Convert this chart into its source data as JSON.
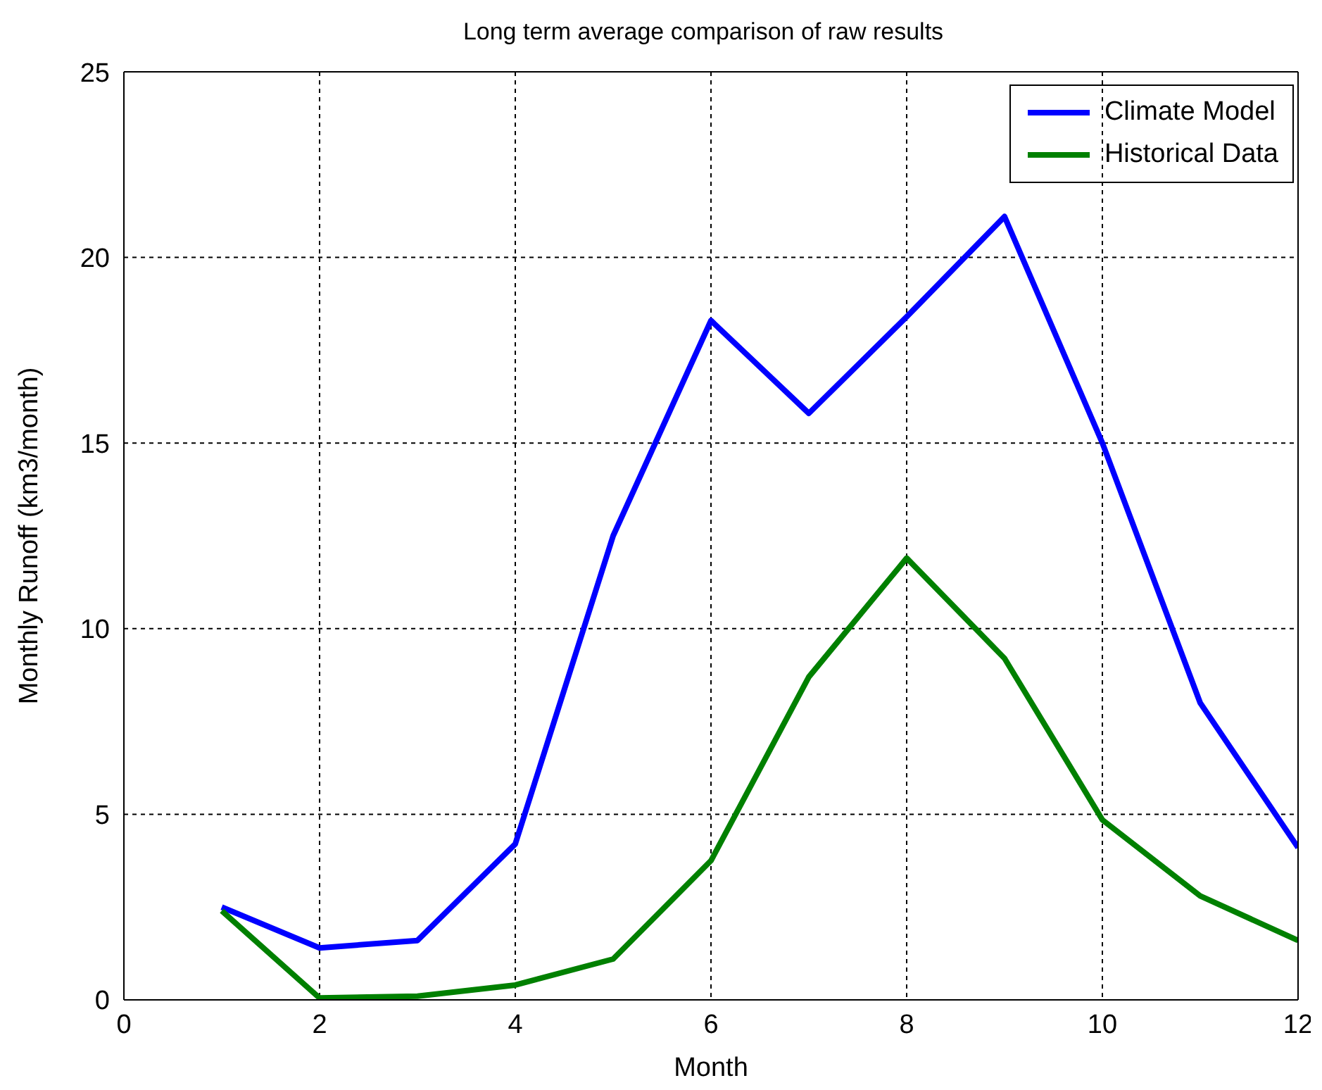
{
  "chart_data": {
    "type": "line",
    "title": "Long term average comparison of raw results",
    "xlabel": "Month",
    "ylabel": "Monthly Runoff (km3/month)",
    "x": [
      1,
      2,
      3,
      4,
      5,
      6,
      7,
      8,
      9,
      10,
      11,
      12
    ],
    "series": [
      {
        "name": "Climate Model",
        "color": "#0000ff",
        "values": [
          2.5,
          1.4,
          1.6,
          4.2,
          12.5,
          18.3,
          15.8,
          18.4,
          21.1,
          15.0,
          8.0,
          4.1
        ]
      },
      {
        "name": "Historical Data",
        "color": "#008000",
        "values": [
          2.4,
          0.05,
          0.1,
          0.4,
          1.1,
          3.75,
          8.7,
          11.9,
          9.2,
          4.85,
          2.8,
          1.6
        ]
      }
    ],
    "xlim": [
      0,
      12
    ],
    "xticks": [
      0,
      2,
      4,
      6,
      8,
      10,
      12
    ],
    "ylim": [
      0,
      25
    ],
    "yticks": [
      0,
      5,
      10,
      15,
      20,
      25
    ],
    "grid": true,
    "legend": "top right",
    "marker": "none",
    "line_style": "solid"
  }
}
